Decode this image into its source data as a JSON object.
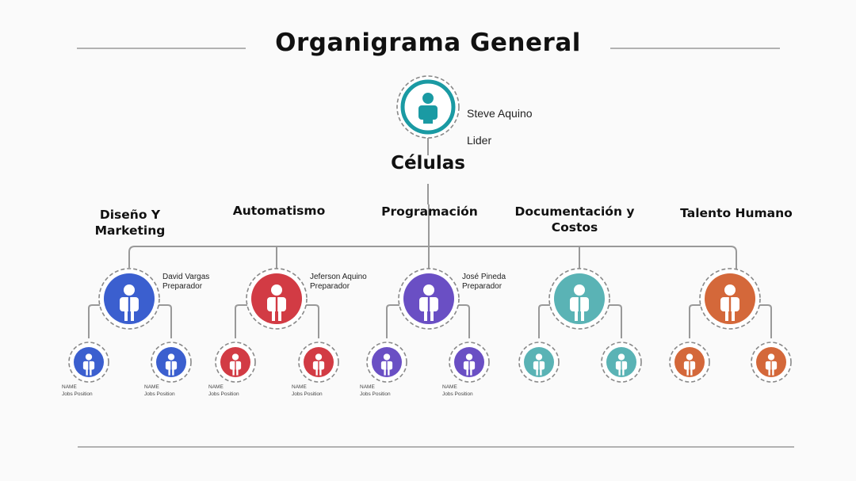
{
  "title": "Organigrama General",
  "subtitle": "Células",
  "leader": {
    "name": "Steve Aquino",
    "role": "Lider",
    "color": "#1a9aa3"
  },
  "departments": [
    {
      "name": "Diseño Y\nMarketing",
      "color": "#3b5fcf",
      "head": {
        "name": "David Vargas",
        "role": "Preparador"
      },
      "members": [
        {
          "name": "NAME",
          "role": "Jobs Position"
        },
        {
          "name": "NAME",
          "role": "Jobs Position"
        }
      ]
    },
    {
      "name": "Automatismo",
      "color": "#d23b44",
      "head": {
        "name": "Jeferson Aquino",
        "role": "Preparador"
      },
      "members": [
        {
          "name": "NAME",
          "role": "Jobs Position"
        },
        {
          "name": "NAME",
          "role": "Jobs Position"
        }
      ]
    },
    {
      "name": "Programación",
      "color": "#6a4fc4",
      "head": {
        "name": "José Pineda",
        "role": "Preparador"
      },
      "members": [
        {
          "name": "NAME",
          "role": "Jobs Position"
        },
        {
          "name": "NAME",
          "role": "Jobs Position"
        }
      ]
    },
    {
      "name": "Documentación y\nCostos",
      "color": "#5ab3b5",
      "head": {
        "name": "",
        "role": ""
      },
      "members": [
        {
          "name": "",
          "role": ""
        },
        {
          "name": "",
          "role": ""
        }
      ]
    },
    {
      "name": "Talento Humano",
      "color": "#d4683a",
      "head": {
        "name": "",
        "role": ""
      },
      "members": [
        {
          "name": "",
          "role": ""
        },
        {
          "name": "",
          "role": ""
        }
      ]
    }
  ]
}
